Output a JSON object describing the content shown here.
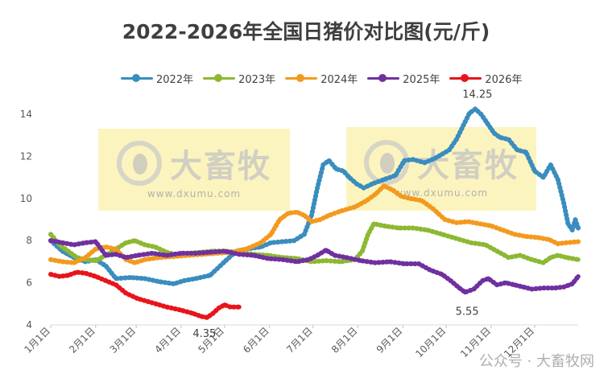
{
  "chart_data": {
    "type": "line",
    "title": "2022-2026年全国日猪价对比图(元/斤)",
    "xlabel": "",
    "ylabel": "",
    "ylim": [
      4,
      14
    ],
    "yticks": [
      4,
      6,
      8,
      10,
      12,
      14
    ],
    "xticks": [
      "1月1日",
      "2月1日",
      "3月1日",
      "4月1日",
      "5月1日",
      "6月1日",
      "7月1日",
      "8月1日",
      "9月1日",
      "10月1日",
      "11月1日",
      "12月1日"
    ],
    "x_day_range": [
      0,
      364
    ],
    "grid": false,
    "legend_position": "top",
    "series": [
      {
        "name": "2022年",
        "color": "#3A8DBE",
        "points": [
          [
            0,
            8.0
          ],
          [
            8,
            7.5
          ],
          [
            16,
            7.2
          ],
          [
            24,
            7.0
          ],
          [
            31,
            7.1
          ],
          [
            38,
            6.8
          ],
          [
            45,
            6.2
          ],
          [
            55,
            6.25
          ],
          [
            65,
            6.2
          ],
          [
            75,
            6.05
          ],
          [
            85,
            5.95
          ],
          [
            92,
            6.1
          ],
          [
            100,
            6.2
          ],
          [
            110,
            6.35
          ],
          [
            120,
            7.0
          ],
          [
            128,
            7.5
          ],
          [
            135,
            7.6
          ],
          [
            145,
            7.7
          ],
          [
            152,
            7.9
          ],
          [
            160,
            7.95
          ],
          [
            168,
            8.0
          ],
          [
            175,
            8.3
          ],
          [
            180,
            9.2
          ],
          [
            184,
            10.5
          ],
          [
            188,
            11.6
          ],
          [
            192,
            11.8
          ],
          [
            197,
            11.4
          ],
          [
            202,
            11.3
          ],
          [
            206,
            11.0
          ],
          [
            211,
            10.7
          ],
          [
            216,
            10.5
          ],
          [
            222,
            10.7
          ],
          [
            230,
            10.9
          ],
          [
            238,
            11.1
          ],
          [
            244,
            11.8
          ],
          [
            250,
            11.85
          ],
          [
            258,
            11.7
          ],
          [
            265,
            11.9
          ],
          [
            270,
            12.1
          ],
          [
            275,
            12.3
          ],
          [
            280,
            12.8
          ],
          [
            285,
            13.5
          ],
          [
            289,
            14.05
          ],
          [
            293,
            14.25
          ],
          [
            297,
            14.0
          ],
          [
            301,
            13.6
          ],
          [
            306,
            13.1
          ],
          [
            310,
            12.9
          ],
          [
            316,
            12.8
          ],
          [
            322,
            12.3
          ],
          [
            328,
            12.2
          ],
          [
            334,
            11.3
          ],
          [
            340,
            11.0
          ],
          [
            345,
            11.6
          ],
          [
            350,
            10.9
          ],
          [
            354,
            9.8
          ],
          [
            357,
            8.8
          ],
          [
            360,
            8.5
          ],
          [
            362,
            9.0
          ],
          [
            364,
            8.6
          ]
        ]
      },
      {
        "name": "2023年",
        "color": "#8DB832",
        "points": [
          [
            0,
            8.3
          ],
          [
            6,
            7.8
          ],
          [
            12,
            7.5
          ],
          [
            18,
            7.2
          ],
          [
            24,
            7.1
          ],
          [
            31,
            7.05
          ],
          [
            38,
            7.3
          ],
          [
            45,
            7.6
          ],
          [
            52,
            7.9
          ],
          [
            58,
            8.0
          ],
          [
            65,
            7.8
          ],
          [
            72,
            7.7
          ],
          [
            80,
            7.45
          ],
          [
            88,
            7.3
          ],
          [
            96,
            7.4
          ],
          [
            104,
            7.45
          ],
          [
            112,
            7.5
          ],
          [
            120,
            7.5
          ],
          [
            130,
            7.45
          ],
          [
            140,
            7.35
          ],
          [
            150,
            7.3
          ],
          [
            160,
            7.2
          ],
          [
            170,
            7.15
          ],
          [
            180,
            7.0
          ],
          [
            190,
            7.05
          ],
          [
            200,
            7.0
          ],
          [
            210,
            7.1
          ],
          [
            215,
            7.5
          ],
          [
            219,
            8.3
          ],
          [
            223,
            8.8
          ],
          [
            230,
            8.7
          ],
          [
            240,
            8.6
          ],
          [
            250,
            8.6
          ],
          [
            260,
            8.5
          ],
          [
            270,
            8.3
          ],
          [
            280,
            8.1
          ],
          [
            290,
            7.9
          ],
          [
            300,
            7.8
          ],
          [
            308,
            7.5
          ],
          [
            316,
            7.2
          ],
          [
            324,
            7.3
          ],
          [
            332,
            7.1
          ],
          [
            340,
            6.95
          ],
          [
            345,
            7.2
          ],
          [
            350,
            7.3
          ],
          [
            356,
            7.2
          ],
          [
            364,
            7.1
          ]
        ]
      },
      {
        "name": "2024年",
        "color": "#F39A1E",
        "points": [
          [
            0,
            7.1
          ],
          [
            8,
            7.0
          ],
          [
            16,
            6.95
          ],
          [
            24,
            7.2
          ],
          [
            31,
            7.6
          ],
          [
            38,
            7.7
          ],
          [
            45,
            7.6
          ],
          [
            52,
            7.1
          ],
          [
            58,
            6.95
          ],
          [
            65,
            7.1
          ],
          [
            75,
            7.2
          ],
          [
            85,
            7.25
          ],
          [
            95,
            7.3
          ],
          [
            105,
            7.35
          ],
          [
            115,
            7.4
          ],
          [
            125,
            7.45
          ],
          [
            135,
            7.6
          ],
          [
            145,
            7.9
          ],
          [
            152,
            8.3
          ],
          [
            158,
            9.0
          ],
          [
            164,
            9.3
          ],
          [
            170,
            9.35
          ],
          [
            175,
            9.2
          ],
          [
            180,
            8.9
          ],
          [
            186,
            9.0
          ],
          [
            192,
            9.2
          ],
          [
            200,
            9.4
          ],
          [
            210,
            9.6
          ],
          [
            218,
            9.9
          ],
          [
            224,
            10.2
          ],
          [
            230,
            10.6
          ],
          [
            236,
            10.4
          ],
          [
            242,
            10.1
          ],
          [
            248,
            10.0
          ],
          [
            256,
            9.9
          ],
          [
            264,
            9.5
          ],
          [
            272,
            9.0
          ],
          [
            280,
            8.85
          ],
          [
            288,
            8.9
          ],
          [
            296,
            8.8
          ],
          [
            304,
            8.7
          ],
          [
            312,
            8.5
          ],
          [
            320,
            8.3
          ],
          [
            328,
            8.2
          ],
          [
            336,
            8.15
          ],
          [
            344,
            8.05
          ],
          [
            350,
            7.85
          ],
          [
            356,
            7.9
          ],
          [
            364,
            7.95
          ]
        ]
      },
      {
        "name": "2025年",
        "color": "#7030A0",
        "points": [
          [
            0,
            8.0
          ],
          [
            8,
            7.9
          ],
          [
            16,
            7.8
          ],
          [
            24,
            7.9
          ],
          [
            31,
            7.95
          ],
          [
            38,
            7.3
          ],
          [
            45,
            7.35
          ],
          [
            52,
            7.2
          ],
          [
            60,
            7.3
          ],
          [
            70,
            7.4
          ],
          [
            80,
            7.3
          ],
          [
            90,
            7.4
          ],
          [
            100,
            7.4
          ],
          [
            110,
            7.45
          ],
          [
            120,
            7.5
          ],
          [
            130,
            7.35
          ],
          [
            140,
            7.3
          ],
          [
            150,
            7.15
          ],
          [
            160,
            7.1
          ],
          [
            170,
            7.0
          ],
          [
            178,
            7.1
          ],
          [
            184,
            7.3
          ],
          [
            190,
            7.55
          ],
          [
            196,
            7.3
          ],
          [
            204,
            7.2
          ],
          [
            214,
            7.05
          ],
          [
            224,
            6.95
          ],
          [
            234,
            7.0
          ],
          [
            244,
            6.9
          ],
          [
            254,
            6.9
          ],
          [
            262,
            6.6
          ],
          [
            270,
            6.4
          ],
          [
            276,
            6.1
          ],
          [
            282,
            5.75
          ],
          [
            286,
            5.55
          ],
          [
            292,
            5.7
          ],
          [
            298,
            6.1
          ],
          [
            302,
            6.2
          ],
          [
            308,
            5.9
          ],
          [
            314,
            6.0
          ],
          [
            320,
            5.9
          ],
          [
            326,
            5.8
          ],
          [
            332,
            5.7
          ],
          [
            340,
            5.75
          ],
          [
            348,
            5.75
          ],
          [
            354,
            5.8
          ],
          [
            360,
            5.95
          ],
          [
            364,
            6.3
          ]
        ]
      },
      {
        "name": "2026年",
        "color": "#E8141B",
        "points": [
          [
            0,
            6.4
          ],
          [
            6,
            6.3
          ],
          [
            12,
            6.35
          ],
          [
            18,
            6.5
          ],
          [
            24,
            6.45
          ],
          [
            31,
            6.3
          ],
          [
            38,
            6.1
          ],
          [
            45,
            5.9
          ],
          [
            52,
            5.5
          ],
          [
            60,
            5.25
          ],
          [
            70,
            5.05
          ],
          [
            80,
            4.85
          ],
          [
            90,
            4.7
          ],
          [
            98,
            4.55
          ],
          [
            104,
            4.4
          ],
          [
            108,
            4.35
          ],
          [
            112,
            4.55
          ],
          [
            116,
            4.8
          ],
          [
            120,
            4.95
          ],
          [
            124,
            4.85
          ],
          [
            130,
            4.85
          ]
        ]
      }
    ],
    "annotations": [
      "14.25",
      "5.55",
      "4.35"
    ]
  },
  "watermark": {
    "name": "大畜牧",
    "url": "www.dxumu.com",
    "corner_text": "公众号 · 大畜牧网"
  }
}
